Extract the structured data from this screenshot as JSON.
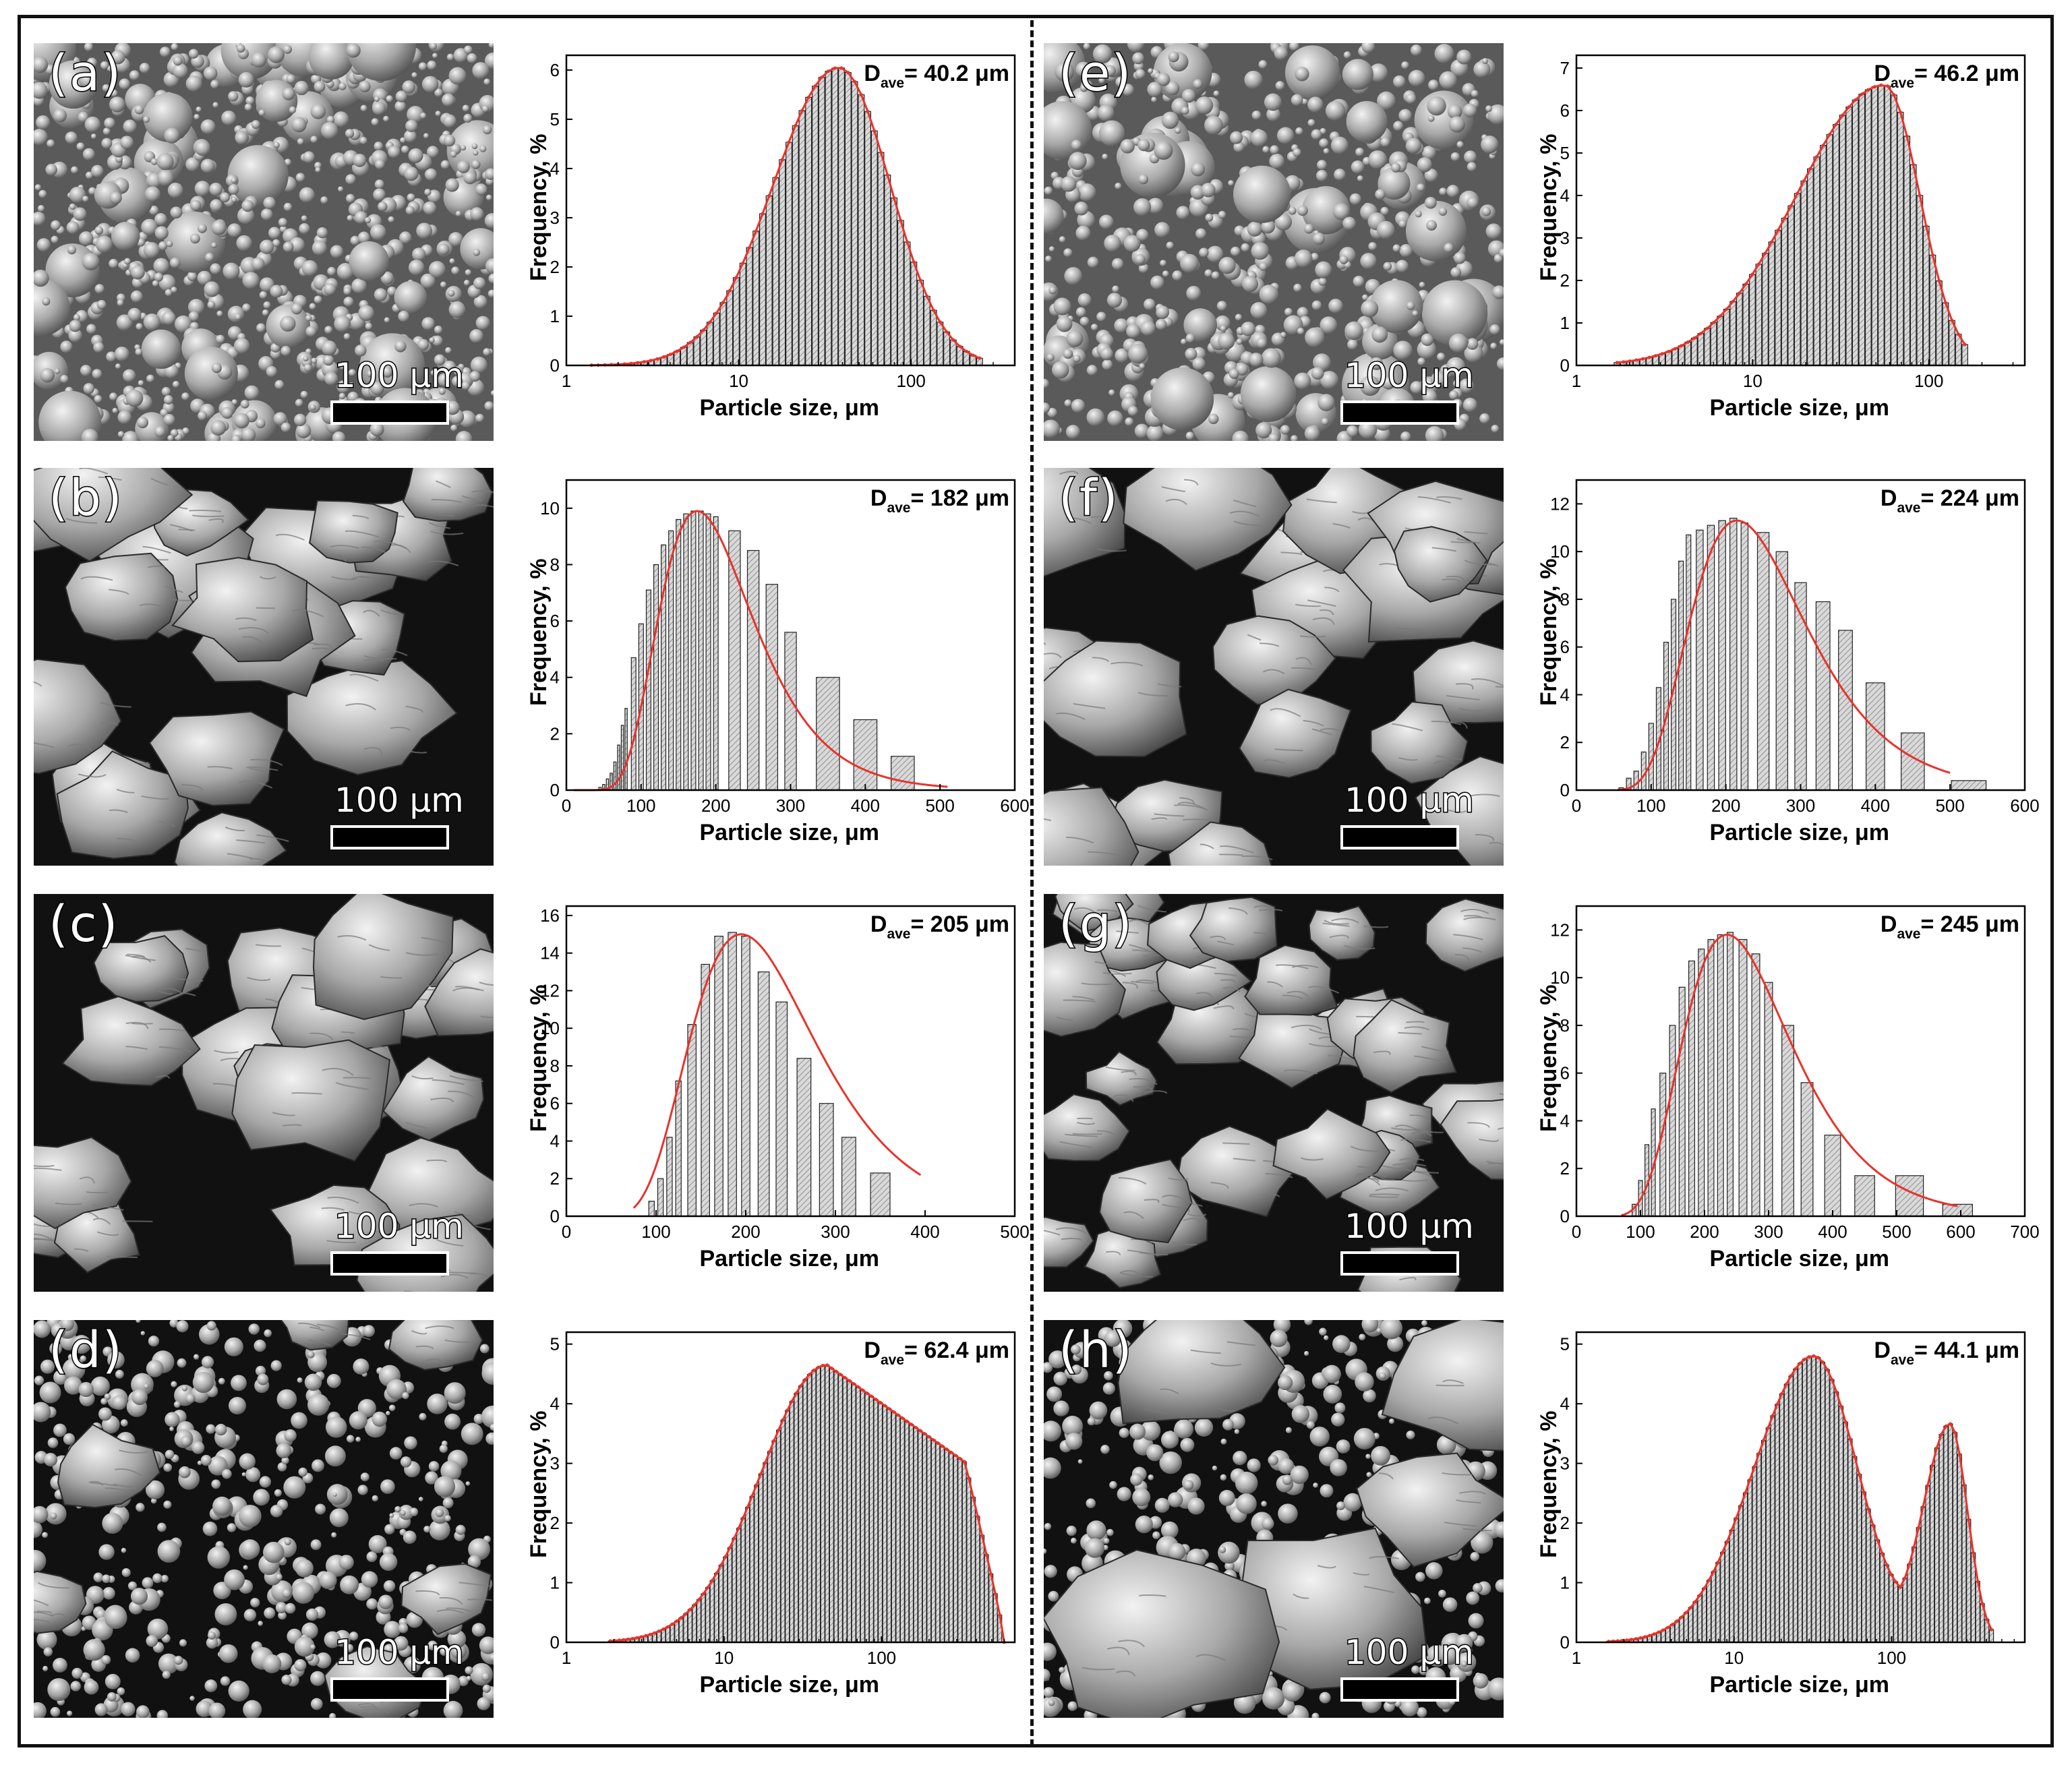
{
  "panels": [
    {
      "letter": "(a)",
      "scale": "100 μm",
      "texture": "spheres-fine"
    },
    {
      "letter": "(b)",
      "scale": "100 μm",
      "texture": "irregular-large"
    },
    {
      "letter": "(c)",
      "scale": "100 μm",
      "texture": "irregular-large"
    },
    {
      "letter": "(d)",
      "scale": "100 μm",
      "texture": "mixed"
    },
    {
      "letter": "(e)",
      "scale": "100 μm",
      "texture": "spheres-coarse"
    },
    {
      "letter": "(f)",
      "scale": "100 μm",
      "texture": "irregular-large"
    },
    {
      "letter": "(g)",
      "scale": "100 μm",
      "texture": "irregular-medium"
    },
    {
      "letter": "(h)",
      "scale": "100 μm",
      "texture": "mixed-large"
    }
  ],
  "colors": {
    "bar_fill": "#d9d9d9",
    "bar_stroke": "#222222",
    "fit_line": "#e8332b",
    "frame": "#111111",
    "sem_bg": "#1a1a1a"
  },
  "chart_data": [
    {
      "id": "a",
      "type": "bar",
      "dave_label": "D",
      "dave_sub": "ave",
      "dave_value": "= 40.2 μm",
      "xlabel": "Particle size, μm",
      "ylabel": "Frequency, %",
      "xscale": "log",
      "xlim": [
        1,
        400
      ],
      "ylim": [
        0,
        6.3
      ],
      "xticks": [
        1,
        10,
        100
      ],
      "yticks": [
        0,
        1,
        2,
        3,
        4,
        5,
        6
      ],
      "shape": "lognormal",
      "mode": 38,
      "peak": 6.05,
      "sigma_left": 0.38,
      "sigma_right": 0.3,
      "xmin": 1.4,
      "xmax": 250,
      "bins": 60
    },
    {
      "id": "b",
      "type": "bar",
      "dave_label": "D",
      "dave_sub": "ave",
      "dave_value": "= 182 μm",
      "xlabel": "Particle size, μm",
      "ylabel": "Frequency, %",
      "xscale": "linear",
      "xlim": [
        0,
        600
      ],
      "ylim": [
        0,
        11
      ],
      "xticks": [
        0,
        100,
        200,
        300,
        400,
        500,
        600
      ],
      "yticks": [
        0,
        2,
        4,
        6,
        8,
        10
      ],
      "x": [
        45,
        50,
        55,
        60,
        65,
        70,
        75,
        80,
        90,
        100,
        110,
        120,
        130,
        140,
        150,
        160,
        170,
        180,
        190,
        200,
        225,
        250,
        275,
        300,
        350,
        400,
        450
      ],
      "values": [
        0.1,
        0.2,
        0.4,
        0.6,
        1.0,
        1.6,
        2.3,
        2.9,
        4.7,
        5.9,
        7.1,
        8.0,
        8.7,
        9.2,
        9.6,
        9.8,
        9.9,
        9.9,
        9.8,
        9.7,
        9.2,
        8.5,
        7.3,
        5.6,
        4.0,
        2.5,
        1.2
      ],
      "fit": "lognormal",
      "fit_mode": 175,
      "fit_peak": 9.9,
      "fit_range": [
        10,
        510
      ]
    },
    {
      "id": "c",
      "type": "bar",
      "dave_label": "D",
      "dave_sub": "ave",
      "dave_value": "= 205 μm",
      "xlabel": "Particle size, μm",
      "ylabel": "Frequency, %",
      "xscale": "linear",
      "xlim": [
        0,
        500
      ],
      "ylim": [
        0,
        16.5
      ],
      "xticks": [
        0,
        100,
        200,
        300,
        400,
        500
      ],
      "yticks": [
        0,
        2,
        4,
        6,
        8,
        10,
        12,
        14,
        16
      ],
      "x": [
        95,
        105,
        115,
        125,
        140,
        155,
        170,
        185,
        200,
        220,
        240,
        265,
        290,
        315,
        350
      ],
      "values": [
        0.8,
        2.0,
        4.2,
        7.2,
        10.2,
        13.4,
        14.9,
        15.1,
        14.9,
        13.0,
        11.4,
        8.4,
        6.0,
        4.2,
        2.3
      ],
      "fit": "lognormal",
      "fit_mode": 195,
      "fit_peak": 15.0,
      "fit_range": [
        75,
        395
      ]
    },
    {
      "id": "d",
      "type": "bar",
      "dave_label": "D",
      "dave_sub": "ave",
      "dave_value": "= 62.4 μm",
      "xlabel": "Particle size, μm",
      "ylabel": "Frequency, %",
      "xscale": "log",
      "xlim": [
        1,
        700
      ],
      "ylim": [
        0,
        5.2
      ],
      "xticks": [
        1,
        10,
        100
      ],
      "yticks": [
        0,
        1,
        2,
        3,
        4,
        5
      ],
      "shape": "skewed",
      "mode": 45,
      "peak": 4.65,
      "xmin": 1.9,
      "xmax": 600,
      "bins": 90
    },
    {
      "id": "e",
      "type": "bar",
      "dave_label": "D",
      "dave_sub": "ave",
      "dave_value": "= 46.2 μm",
      "xlabel": "Particle size, μm",
      "ylabel": "Frequency, %",
      "xscale": "log",
      "xlim": [
        1,
        350
      ],
      "ylim": [
        0,
        7.3
      ],
      "xticks": [
        1,
        10,
        100
      ],
      "yticks": [
        0,
        1,
        2,
        3,
        4,
        5,
        6,
        7
      ],
      "shape": "leftskew",
      "mode": 56,
      "peak": 6.6,
      "xmin": 1.7,
      "xmax": 160,
      "bins": 55
    },
    {
      "id": "f",
      "type": "bar",
      "dave_label": "D",
      "dave_sub": "ave",
      "dave_value": "= 224 μm",
      "xlabel": "Particle size, μm",
      "ylabel": "Frequency, %",
      "xscale": "linear",
      "xlim": [
        0,
        600
      ],
      "ylim": [
        0,
        13
      ],
      "xticks": [
        0,
        100,
        200,
        300,
        400,
        500,
        600
      ],
      "yticks": [
        0,
        2,
        4,
        6,
        8,
        10,
        12
      ],
      "x": [
        60,
        70,
        80,
        90,
        100,
        110,
        120,
        130,
        140,
        150,
        165,
        180,
        195,
        210,
        225,
        250,
        275,
        300,
        330,
        360,
        400,
        450,
        525
      ],
      "values": [
        0.1,
        0.5,
        0.8,
        1.6,
        2.8,
        4.3,
        6.2,
        8.0,
        9.6,
        10.7,
        10.9,
        11.1,
        11.3,
        11.4,
        11.2,
        10.8,
        10.0,
        8.7,
        7.9,
        6.7,
        4.5,
        2.4,
        0.4
      ],
      "fit": "lognormal",
      "fit_mode": 215,
      "fit_peak": 11.3,
      "fit_range": [
        55,
        500
      ]
    },
    {
      "id": "g",
      "type": "bar",
      "dave_label": "D",
      "dave_sub": "ave",
      "dave_value": "= 245 μm",
      "xlabel": "Particle size, μm",
      "ylabel": "Frequency, %",
      "xscale": "linear",
      "xlim": [
        0,
        700
      ],
      "ylim": [
        0,
        13
      ],
      "xticks": [
        0,
        100,
        200,
        300,
        400,
        500,
        600,
        700
      ],
      "yticks": [
        0,
        2,
        4,
        6,
        8,
        10,
        12
      ],
      "x": [
        90,
        100,
        110,
        120,
        135,
        150,
        165,
        180,
        195,
        210,
        225,
        240,
        260,
        280,
        300,
        330,
        360,
        400,
        450,
        520,
        595
      ],
      "values": [
        0.5,
        1.5,
        3.0,
        4.5,
        6.0,
        8.0,
        9.6,
        10.7,
        11.2,
        11.6,
        11.8,
        11.9,
        11.6,
        11.0,
        9.8,
        8.0,
        5.6,
        3.4,
        1.7,
        1.7,
        0.5
      ],
      "fit": "lognormal",
      "fit_mode": 235,
      "fit_peak": 11.8,
      "fit_range": [
        70,
        595
      ]
    },
    {
      "id": "h",
      "type": "bar",
      "dave_label": "D",
      "dave_sub": "ave",
      "dave_value": "= 44.1 μm",
      "xlabel": "Particle size, μm",
      "ylabel": "Frequency, %",
      "xscale": "log",
      "xlim": [
        1,
        700
      ],
      "ylim": [
        0,
        5.2
      ],
      "xticks": [
        1,
        10,
        100
      ],
      "yticks": [
        0,
        1,
        2,
        3,
        4,
        5
      ],
      "shape": "bimodal",
      "mode": 32,
      "peak": 4.8,
      "mode2": 235,
      "peak2": 3.65,
      "xmin": 1.6,
      "xmax": 430,
      "bins": 85
    }
  ]
}
